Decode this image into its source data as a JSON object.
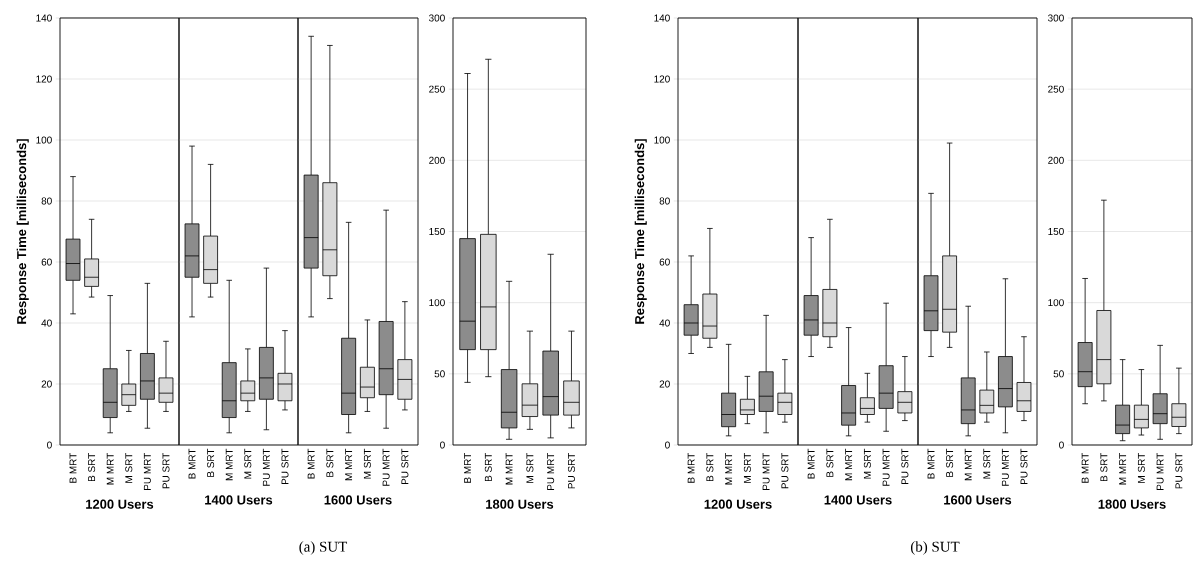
{
  "chart_data": [
    {
      "type": "box",
      "ylabel": "Response Time [milliseconds]",
      "xlabel": "1200 Users",
      "annotations": [
        "(a) SUT"
      ],
      "categories": [
        "B MRT",
        "B SRT",
        "M MRT",
        "M SRT",
        "PU MRT",
        "PU SRT"
      ],
      "colors": [
        "#8c8c8c",
        "#d9d9d9",
        "#8c8c8c",
        "#d9d9d9",
        "#8c8c8c",
        "#d9d9d9"
      ],
      "ylim": [
        0,
        140
      ],
      "yticks": [
        0,
        20,
        40,
        60,
        80,
        100,
        120,
        140
      ],
      "grid": "y",
      "boxes": [
        {
          "low": 43,
          "q1": 54,
          "median": 59.5,
          "q3": 67.5,
          "high": 88
        },
        {
          "low": 48.5,
          "q1": 52,
          "median": 55,
          "q3": 61,
          "high": 74
        },
        {
          "low": 4,
          "q1": 9,
          "median": 14,
          "q3": 25,
          "high": 49
        },
        {
          "low": 11,
          "q1": 13,
          "median": 16.5,
          "q3": 20,
          "high": 31
        },
        {
          "low": 5.5,
          "q1": 15,
          "median": 21,
          "q3": 30,
          "high": 53
        },
        {
          "low": 11,
          "q1": 14,
          "median": 17,
          "q3": 22,
          "high": 34
        }
      ]
    },
    {
      "type": "box",
      "xlabel": "1400 Users",
      "tick_labels": "x",
      "categories": [
        "B MRT",
        "B SRT",
        "M MRT",
        "M SRT",
        "PU MRT",
        "PU SRT"
      ],
      "colors": [
        "#8c8c8c",
        "#d9d9d9",
        "#8c8c8c",
        "#d9d9d9",
        "#8c8c8c",
        "#d9d9d9"
      ],
      "ylim": [
        0,
        140
      ],
      "yticks": [
        0,
        20,
        40,
        60,
        80,
        100,
        120,
        140
      ],
      "grid": "y",
      "boxes": [
        {
          "low": 42,
          "q1": 55,
          "median": 62,
          "q3": 72.5,
          "high": 98
        },
        {
          "low": 48.5,
          "q1": 53,
          "median": 57.5,
          "q3": 68.5,
          "high": 92
        },
        {
          "low": 4,
          "q1": 9,
          "median": 14.5,
          "q3": 27,
          "high": 54
        },
        {
          "low": 11,
          "q1": 14.5,
          "median": 17,
          "q3": 21,
          "high": 31.5
        },
        {
          "low": 5,
          "q1": 15,
          "median": 22,
          "q3": 32,
          "high": 58
        },
        {
          "low": 11.5,
          "q1": 14.5,
          "median": 20,
          "q3": 23.5,
          "high": 37.5
        }
      ]
    },
    {
      "type": "box",
      "xlabel": "1600 Users",
      "tick_labels": "x",
      "categories": [
        "B MRT",
        "B SRT",
        "M MRT",
        "M SRT",
        "PU MRT",
        "PU SRT"
      ],
      "colors": [
        "#8c8c8c",
        "#d9d9d9",
        "#8c8c8c",
        "#d9d9d9",
        "#8c8c8c",
        "#d9d9d9"
      ],
      "ylim": [
        0,
        140
      ],
      "yticks": [
        0,
        20,
        40,
        60,
        80,
        100,
        120,
        140
      ],
      "grid": "y",
      "boxes": [
        {
          "low": 42,
          "q1": 58,
          "median": 68,
          "q3": 88.5,
          "high": 134
        },
        {
          "low": 48,
          "q1": 55.5,
          "median": 64,
          "q3": 86,
          "high": 131
        },
        {
          "low": 4,
          "q1": 10,
          "median": 17,
          "q3": 35,
          "high": 73
        },
        {
          "low": 11,
          "q1": 15.5,
          "median": 19,
          "q3": 25.5,
          "high": 41
        },
        {
          "low": 5.5,
          "q1": 16.5,
          "median": 25,
          "q3": 40.5,
          "high": 77
        },
        {
          "low": 11.5,
          "q1": 15,
          "median": 21.5,
          "q3": 28,
          "high": 47
        }
      ]
    },
    {
      "type": "box",
      "xlabel": "1800 Users",
      "categories": [
        "B MRT",
        "B SRT",
        "M MRT",
        "M SRT",
        "PU MRT",
        "PU SRT"
      ],
      "colors": [
        "#8c8c8c",
        "#d9d9d9",
        "#8c8c8c",
        "#d9d9d9",
        "#8c8c8c",
        "#d9d9d9"
      ],
      "ylim": [
        0,
        300
      ],
      "yticks": [
        0,
        50,
        100,
        150,
        200,
        250,
        300
      ],
      "grid": "y",
      "boxes": [
        {
          "low": 44,
          "q1": 67,
          "median": 87,
          "q3": 145,
          "high": 261
        },
        {
          "low": 48,
          "q1": 67,
          "median": 97,
          "q3": 148,
          "high": 271
        },
        {
          "low": 4,
          "q1": 12,
          "median": 23,
          "q3": 53,
          "high": 115
        },
        {
          "low": 11,
          "q1": 20,
          "median": 28,
          "q3": 43,
          "high": 80
        },
        {
          "low": 5,
          "q1": 21,
          "median": 34,
          "q3": 66,
          "high": 134
        },
        {
          "low": 12,
          "q1": 21,
          "median": 30,
          "q3": 45,
          "high": 80
        }
      ]
    },
    {
      "type": "box",
      "ylabel": "Response Time [milliseconds]",
      "xlabel": "1200 Users",
      "annotations": [
        "(b) SUT"
      ],
      "categories": [
        "B MRT",
        "B SRT",
        "M MRT",
        "M SRT",
        "PU MRT",
        "PU SRT"
      ],
      "colors": [
        "#8c8c8c",
        "#d9d9d9",
        "#8c8c8c",
        "#d9d9d9",
        "#8c8c8c",
        "#d9d9d9"
      ],
      "ylim": [
        0,
        140
      ],
      "yticks": [
        0,
        20,
        40,
        60,
        80,
        100,
        120,
        140
      ],
      "grid": "y",
      "boxes": [
        {
          "low": 30,
          "q1": 36,
          "median": 40,
          "q3": 46,
          "high": 62
        },
        {
          "low": 32,
          "q1": 35,
          "median": 39,
          "q3": 49.5,
          "high": 71
        },
        {
          "low": 3,
          "q1": 6,
          "median": 10,
          "q3": 17,
          "high": 33
        },
        {
          "low": 7,
          "q1": 10,
          "median": 11.5,
          "q3": 15,
          "high": 22.5
        },
        {
          "low": 4,
          "q1": 11,
          "median": 16,
          "q3": 24,
          "high": 42.5
        },
        {
          "low": 7.5,
          "q1": 10,
          "median": 14,
          "q3": 17,
          "high": 28
        }
      ]
    },
    {
      "type": "box",
      "xlabel": "1400 Users",
      "tick_labels": "x",
      "categories": [
        "B MRT",
        "B SRT",
        "M MRT",
        "M SRT",
        "PU MRT",
        "PU SRT"
      ],
      "colors": [
        "#8c8c8c",
        "#d9d9d9",
        "#8c8c8c",
        "#d9d9d9",
        "#8c8c8c",
        "#d9d9d9"
      ],
      "ylim": [
        0,
        140
      ],
      "yticks": [
        0,
        20,
        40,
        60,
        80,
        100,
        120,
        140
      ],
      "grid": "y",
      "boxes": [
        {
          "low": 29,
          "q1": 36,
          "median": 41,
          "q3": 49,
          "high": 68
        },
        {
          "low": 32,
          "q1": 35.5,
          "median": 40,
          "q3": 51,
          "high": 74
        },
        {
          "low": 3,
          "q1": 6.5,
          "median": 10.5,
          "q3": 19.5,
          "high": 38.5
        },
        {
          "low": 7.5,
          "q1": 10,
          "median": 12,
          "q3": 15.5,
          "high": 23.5
        },
        {
          "low": 4.5,
          "q1": 12,
          "median": 17,
          "q3": 26,
          "high": 46.5
        },
        {
          "low": 8,
          "q1": 10.5,
          "median": 14,
          "q3": 17.5,
          "high": 29
        }
      ]
    },
    {
      "type": "box",
      "xlabel": "1600 Users",
      "tick_labels": "x",
      "categories": [
        "B MRT",
        "B SRT",
        "M MRT",
        "M SRT",
        "PU MRT",
        "PU SRT"
      ],
      "colors": [
        "#8c8c8c",
        "#d9d9d9",
        "#8c8c8c",
        "#d9d9d9",
        "#8c8c8c",
        "#d9d9d9"
      ],
      "ylim": [
        0,
        140
      ],
      "yticks": [
        0,
        20,
        40,
        60,
        80,
        100,
        120,
        140
      ],
      "grid": "y",
      "boxes": [
        {
          "low": 29,
          "q1": 37.5,
          "median": 44,
          "q3": 55.5,
          "high": 82.5
        },
        {
          "low": 32,
          "q1": 37,
          "median": 44.5,
          "q3": 62,
          "high": 99
        },
        {
          "low": 3,
          "q1": 7,
          "median": 11.5,
          "q3": 22,
          "high": 45.5
        },
        {
          "low": 7.5,
          "q1": 10.5,
          "median": 13,
          "q3": 18,
          "high": 30.5
        },
        {
          "low": 4,
          "q1": 12.5,
          "median": 18.5,
          "q3": 29,
          "high": 54.5
        },
        {
          "low": 8,
          "q1": 11,
          "median": 14.5,
          "q3": 20.5,
          "high": 35.5
        }
      ]
    },
    {
      "type": "box",
      "xlabel": "1800 Users",
      "categories": [
        "B MRT",
        "B SRT",
        "M MRT",
        "M SRT",
        "PU MRT",
        "PU SRT"
      ],
      "colors": [
        "#8c8c8c",
        "#d9d9d9",
        "#8c8c8c",
        "#d9d9d9",
        "#8c8c8c",
        "#d9d9d9"
      ],
      "ylim": [
        0,
        300
      ],
      "yticks": [
        0,
        50,
        100,
        150,
        200,
        250,
        300
      ],
      "grid": "y",
      "boxes": [
        {
          "low": 29,
          "q1": 41,
          "median": 51.5,
          "q3": 72,
          "high": 117
        },
        {
          "low": 31,
          "q1": 43,
          "median": 60,
          "q3": 94.5,
          "high": 172
        },
        {
          "low": 3,
          "q1": 8,
          "median": 14,
          "q3": 28,
          "high": 60
        },
        {
          "low": 7,
          "q1": 12,
          "median": 18,
          "q3": 28,
          "high": 53
        },
        {
          "low": 4,
          "q1": 15,
          "median": 22,
          "q3": 36,
          "high": 70
        },
        {
          "low": 8,
          "q1": 13,
          "median": 19.5,
          "q3": 29,
          "high": 54
        }
      ]
    }
  ]
}
